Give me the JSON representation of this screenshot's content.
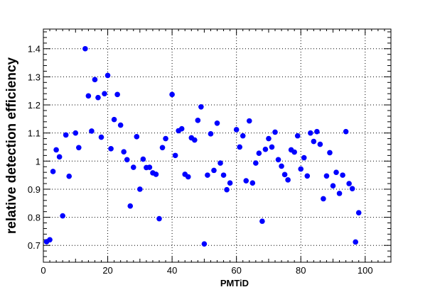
{
  "chart_data": {
    "type": "scatter",
    "title": "",
    "xlabel": "PMTiD",
    "ylabel": "relative detection efficiency",
    "xlim": [
      0,
      108
    ],
    "ylim": [
      0.64,
      1.47
    ],
    "x_ticks": [
      0,
      20,
      40,
      60,
      80,
      100
    ],
    "y_ticks": [
      0.7,
      0.8,
      0.9,
      1.0,
      1.1,
      1.2,
      1.3,
      1.4
    ],
    "y_tick_labels": [
      "0.7",
      "0.8",
      "0.9",
      "1",
      "1.1",
      "1.2",
      "1.3",
      "1.4"
    ],
    "x_tick_labels": [
      "0",
      "20",
      "40",
      "60",
      "80",
      "100"
    ],
    "grid": true,
    "marker_color": "#0000ff",
    "series": [
      {
        "x": [
          1,
          2,
          3,
          4,
          5,
          6,
          7,
          8,
          10,
          11,
          13,
          14,
          15,
          16,
          17,
          18,
          19,
          20,
          21,
          22,
          23,
          24,
          25,
          26,
          27,
          28,
          29,
          30,
          31,
          32,
          33,
          34,
          35,
          36,
          37,
          38,
          40,
          41,
          42,
          43,
          44,
          45,
          46,
          47,
          48,
          49,
          50,
          51,
          52,
          53,
          54,
          55,
          56,
          57,
          58,
          60,
          61,
          62,
          63,
          64,
          65,
          66,
          67,
          68,
          69,
          70,
          71,
          72,
          73,
          74,
          75,
          76,
          77,
          78,
          79,
          80,
          81,
          82,
          83,
          84,
          85,
          86,
          87,
          88,
          89,
          90,
          91,
          92,
          93,
          94,
          95,
          96,
          97,
          98
        ],
        "y": [
          0.713,
          0.72,
          0.963,
          1.04,
          1.015,
          0.805,
          1.093,
          0.946,
          1.1,
          1.048,
          1.4,
          1.232,
          1.107,
          1.29,
          1.226,
          1.085,
          1.24,
          1.305,
          1.044,
          1.148,
          1.237,
          1.128,
          1.033,
          1.005,
          0.84,
          0.978,
          1.087,
          0.9,
          1.007,
          0.977,
          0.978,
          0.958,
          0.953,
          0.795,
          1.048,
          1.08,
          1.237,
          1.02,
          1.108,
          1.115,
          0.953,
          0.944,
          1.083,
          1.075,
          1.145,
          1.193,
          0.705,
          0.95,
          1.097,
          0.967,
          1.135,
          0.993,
          0.95,
          0.898,
          0.922,
          1.112,
          1.05,
          1.09,
          0.93,
          1.143,
          0.922,
          0.993,
          1.028,
          0.786,
          1.042,
          1.08,
          1.05,
          1.103,
          1.005,
          0.982,
          0.952,
          0.933,
          1.04,
          1.032,
          1.09,
          0.972,
          1.012,
          0.947,
          1.1,
          1.07,
          1.105,
          1.06,
          0.866,
          0.947,
          1.03,
          0.912,
          0.96,
          0.885,
          0.95,
          1.105,
          0.92,
          0.902,
          0.712,
          0.816
        ]
      }
    ]
  }
}
